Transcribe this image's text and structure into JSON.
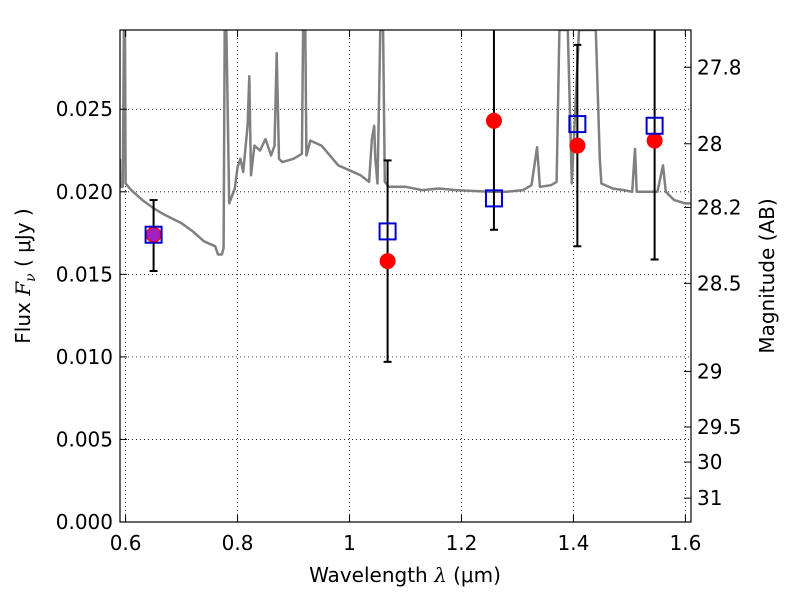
{
  "chart_data": {
    "type": "scatter",
    "xlabel": {
      "prefix": "Wavelength  ",
      "symbol": "λ",
      "unit": " (μm)"
    },
    "ylabel": {
      "prefix": "Flux  ",
      "symbol": "F",
      "subscript": "ν",
      "unit": "  ( μJy )"
    },
    "y2label": "Magnitude (AB)",
    "xlim": [
      0.59,
      1.61
    ],
    "ylim": [
      0.0,
      0.0298
    ],
    "xticks": [
      0.6,
      0.8,
      1.0,
      1.2,
      1.4,
      1.6
    ],
    "xtick_labels": [
      "0.6",
      "0.8",
      "1",
      "1.2",
      "1.4",
      "1.6"
    ],
    "yticks": [
      0.0,
      0.005,
      0.01,
      0.015,
      0.02,
      0.025
    ],
    "ytick_labels": [
      "0.000",
      "0.005",
      "0.010",
      "0.015",
      "0.020",
      "0.025"
    ],
    "y2ticks": [
      {
        "mag": 27.8,
        "label": "27.8"
      },
      {
        "mag": 28.0,
        "label": "28"
      },
      {
        "mag": 28.2,
        "label": "28.2"
      },
      {
        "mag": 28.5,
        "label": "28.5"
      },
      {
        "mag": 29.0,
        "label": "29"
      },
      {
        "mag": 29.5,
        "label": "29.5"
      },
      {
        "mag": 30.0,
        "label": "30"
      },
      {
        "mag": 31.0,
        "label": "31"
      }
    ],
    "grid": true,
    "colors": {
      "model": "#808080",
      "observed": "#ff0000",
      "model_band": "#0000cc",
      "overlap": "#a020c0",
      "errorbar": "#000000"
    },
    "series": [
      {
        "kind": "line",
        "points": [
          [
            0.59,
            0.022
          ],
          [
            0.5905,
            0.0203
          ],
          [
            0.595,
            0.0203
          ],
          [
            0.597,
            0.03
          ],
          [
            0.599,
            0.03
          ],
          [
            0.6,
            0.0205
          ],
          [
            0.61,
            0.0201
          ],
          [
            0.63,
            0.0195
          ],
          [
            0.65,
            0.019
          ],
          [
            0.67,
            0.0186
          ],
          [
            0.7,
            0.0181
          ],
          [
            0.72,
            0.0176
          ],
          [
            0.74,
            0.017
          ],
          [
            0.76,
            0.0167
          ],
          [
            0.765,
            0.0162
          ],
          [
            0.772,
            0.0162
          ],
          [
            0.775,
            0.0166
          ],
          [
            0.777,
            0.03
          ],
          [
            0.78,
            0.03
          ],
          [
            0.785,
            0.0193
          ],
          [
            0.795,
            0.0202
          ],
          [
            0.8,
            0.0215
          ],
          [
            0.805,
            0.022
          ],
          [
            0.81,
            0.0212
          ],
          [
            0.815,
            0.023
          ],
          [
            0.818,
            0.024
          ],
          [
            0.821,
            0.027
          ],
          [
            0.824,
            0.021
          ],
          [
            0.83,
            0.0228
          ],
          [
            0.84,
            0.0225
          ],
          [
            0.85,
            0.0232
          ],
          [
            0.86,
            0.0222
          ],
          [
            0.866,
            0.0228
          ],
          [
            0.87,
            0.0284
          ],
          [
            0.874,
            0.022
          ],
          [
            0.88,
            0.0218
          ],
          [
            0.9,
            0.022
          ],
          [
            0.915,
            0.0223
          ],
          [
            0.917,
            0.03
          ],
          [
            0.921,
            0.03
          ],
          [
            0.923,
            0.0222
          ],
          [
            0.93,
            0.0231
          ],
          [
            0.95,
            0.0228
          ],
          [
            0.97,
            0.022
          ],
          [
            0.98,
            0.0216
          ],
          [
            1.0,
            0.0213
          ],
          [
            1.02,
            0.021
          ],
          [
            1.035,
            0.0206
          ],
          [
            1.04,
            0.0232
          ],
          [
            1.044,
            0.024
          ],
          [
            1.046,
            0.022
          ],
          [
            1.05,
            0.0205
          ],
          [
            1.055,
            0.03
          ],
          [
            1.06,
            0.03
          ],
          [
            1.063,
            0.0206
          ],
          [
            1.07,
            0.0203
          ],
          [
            1.1,
            0.0203
          ],
          [
            1.13,
            0.0201
          ],
          [
            1.16,
            0.0202
          ],
          [
            1.19,
            0.0201
          ],
          [
            1.25,
            0.02
          ],
          [
            1.28,
            0.02
          ],
          [
            1.31,
            0.0201
          ],
          [
            1.325,
            0.0204
          ],
          [
            1.335,
            0.0227
          ],
          [
            1.34,
            0.0203
          ],
          [
            1.36,
            0.0204
          ],
          [
            1.37,
            0.0206
          ],
          [
            1.375,
            0.03
          ],
          [
            1.39,
            0.03
          ],
          [
            1.397,
            0.0205
          ],
          [
            1.41,
            0.03
          ],
          [
            1.44,
            0.03
          ],
          [
            1.447,
            0.022
          ],
          [
            1.45,
            0.0205
          ],
          [
            1.47,
            0.0202
          ],
          [
            1.49,
            0.0201
          ],
          [
            1.505,
            0.02
          ],
          [
            1.51,
            0.0226
          ],
          [
            1.513,
            0.02
          ],
          [
            1.53,
            0.02
          ],
          [
            1.55,
            0.02
          ],
          [
            1.56,
            0.0216
          ],
          [
            1.565,
            0.02
          ],
          [
            1.58,
            0.0195
          ],
          [
            1.6,
            0.0193
          ],
          [
            1.61,
            0.0193
          ]
        ]
      },
      {
        "kind": "observed",
        "points": [
          {
            "x": 0.65,
            "y": 0.0174,
            "yerr": [
              0.0152,
              0.0195
            ]
          },
          {
            "x": 1.068,
            "y": 0.0158,
            "yerr": [
              0.0097,
              0.0219
            ]
          },
          {
            "x": 1.258,
            "y": 0.0243,
            "yerr": [
              0.0177,
              0.031
            ]
          },
          {
            "x": 1.407,
            "y": 0.0228,
            "yerr": [
              0.0167,
              0.0289
            ]
          },
          {
            "x": 1.545,
            "y": 0.0231,
            "yerr": [
              0.0159,
              0.031
            ]
          }
        ]
      },
      {
        "kind": "model_band",
        "points": [
          {
            "x": 0.65,
            "y": 0.0174
          },
          {
            "x": 1.068,
            "y": 0.0176
          },
          {
            "x": 1.258,
            "y": 0.0196
          },
          {
            "x": 1.407,
            "y": 0.0241
          },
          {
            "x": 1.545,
            "y": 0.024
          }
        ]
      }
    ]
  }
}
